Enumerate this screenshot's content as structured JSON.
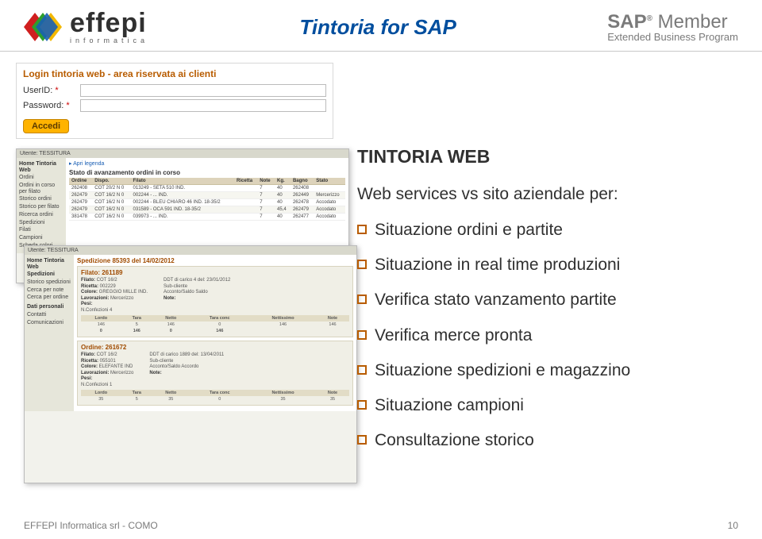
{
  "header": {
    "logo_name": "effepi",
    "logo_sub": "informatica",
    "title": "Tintoria for SAP",
    "sap_brand": "SAP",
    "sap_reg": "®",
    "sap_member": "Member",
    "sap_program": "Extended Business Program"
  },
  "login": {
    "title": "Login tintoria web - area riservata ai clienti",
    "user_label": "UserID:",
    "pass_label": "Password:",
    "star": "*",
    "button": "Accedi"
  },
  "panel1": {
    "topbar": "Utente: TESSITURA",
    "side_title": "Home Tintoria Web",
    "side_items": [
      "Ordini",
      "Ordini in corso per filato",
      "Storico ordini",
      "Storico per filato",
      "Ricerca ordini",
      "Spedizioni",
      "Filati",
      "Campioni",
      "Scheda colori"
    ],
    "legend": "▸ Apri legenda",
    "heading": "Stato di avanzamento ordini in corso",
    "columns": [
      "Ordine",
      "Dispo.",
      "Filato",
      "Ricetta",
      "Note",
      "Kg.",
      "Bagno",
      "Stato"
    ],
    "rows": [
      [
        "262408",
        "COT 20/2 N 0",
        "013249 - SETA 510 IND.",
        "",
        "7",
        "40",
        "262408",
        ""
      ],
      [
        "262479",
        "COT 16/2 N 0",
        "002244 - ... IND.",
        "",
        "7",
        "40",
        "262449",
        "Mercerizzo"
      ],
      [
        "262479",
        "COT 16/2 N 0",
        "002244 - BLEU CHIARO 46 IND. 18-35/2",
        "",
        "7",
        "40",
        "262478",
        "Accodato"
      ],
      [
        "262479",
        "COT 16/2 N 0",
        "031589 - OCA 591 IND. 18-35/2",
        "",
        "7",
        "45,4",
        "262479",
        "Accodato"
      ],
      [
        "381478",
        "COT 16/2 N 0",
        "039973 - ... IND.",
        "",
        "7",
        "40",
        "262477",
        "Accodato"
      ]
    ]
  },
  "panel2": {
    "topbar": "Utente: TESSITURA",
    "side_title": "Home Tintoria Web",
    "side_section": "Spedizioni",
    "side_items": [
      "Storico spedizioni",
      "Cerca per note",
      "Cerca per ordine"
    ],
    "side_section2": "Dati personali",
    "side_items2": [
      "Contatti",
      "Comunicazioni"
    ],
    "heading": "Spedizione 85393 del 14/02/2012",
    "orders": [
      {
        "title": "Filato: 261189",
        "filato": "COT 16/2",
        "ricetta": "002229",
        "colore": "GREGGIO MILLE IND.",
        "lavorazioni": "Mercerizzo",
        "ddt": "DDT di carico    4 del: 23/01/2012",
        "sub": "Sub-cliente",
        "acc": "Acconto/Saldo    Saldo",
        "pesi": "Pesi:",
        "nconf": "N.Confezioni 4",
        "mini_h": [
          "Lordo",
          "Tara",
          "Netto",
          "Tara conc",
          "Nettissimo",
          "Note"
        ],
        "mini_r": [
          "16",
          "146",
          "5",
          "146",
          "0",
          "146",
          "146",
          "C-1"
        ],
        "tot": [
          "0",
          "146",
          "0",
          "146",
          ""
        ]
      },
      {
        "title": "Ordine: 261672",
        "filato": "COT 16/2",
        "ricetta": "055101",
        "colore": "ELEFANTE IND",
        "lavorazioni": "Mercerizzo",
        "ddt": "DDT di carico   1889 del: 13/04/2011",
        "sub": "Sub-cliente",
        "acc": "Acconto/Saldo   Accordo",
        "pesi": "Pesi:",
        "nconf": "N.Confezioni 1",
        "mini_h": [
          "Lordo",
          "Tara",
          "Netto",
          "Tara conc",
          "Nettissimo",
          "Note"
        ],
        "mini_r": [
          "1",
          "35",
          "5",
          "35",
          "0",
          "35",
          "35",
          "C-2"
        ]
      }
    ]
  },
  "section": {
    "title": "TINTORIA WEB",
    "intro": "Web services vs sito aziendale per:",
    "bullets": [
      "Situazione ordini e partite",
      "Situazione in real time produzioni",
      "Verifica stato vanzamento partite",
      "Verifica merce pronta",
      "Situazione spedizioni e magazzino",
      "Situazione campioni",
      "Consultazione storico"
    ]
  },
  "footer": {
    "left": "EFFEPI Informatica srl - COMO",
    "page": "10"
  },
  "colors": {
    "brand_blue": "#004e9e",
    "accent_orange": "#b85c00",
    "grey": "#7a7a7a"
  }
}
